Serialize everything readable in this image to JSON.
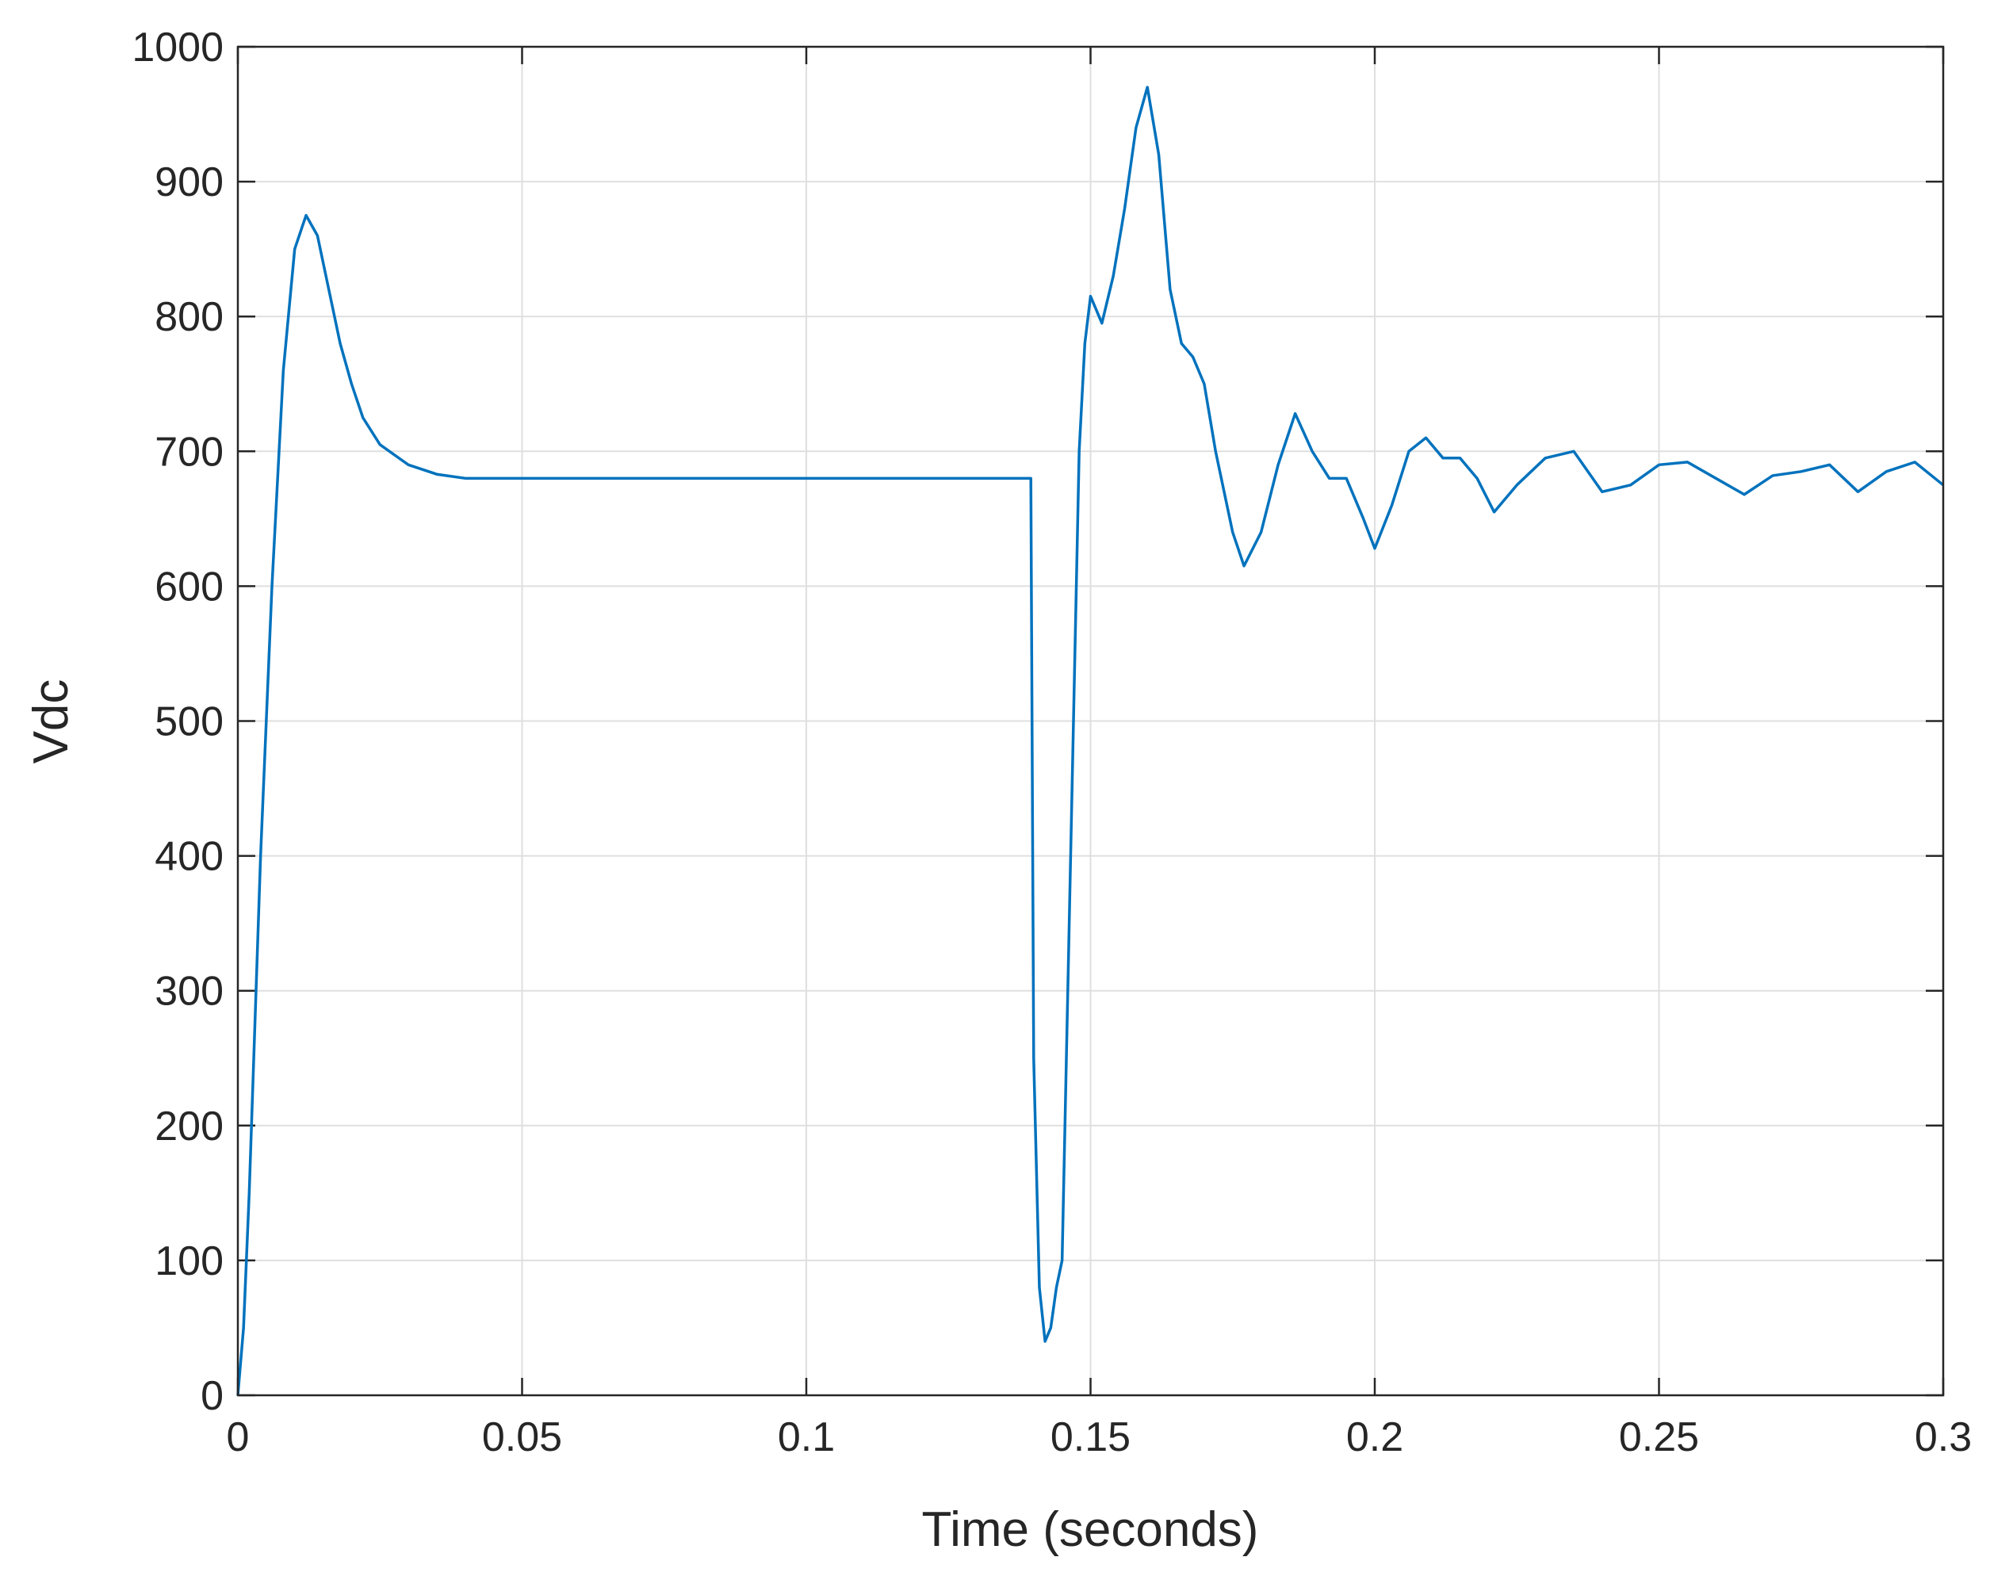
{
  "chart_data": {
    "type": "line",
    "x_label": "Time (seconds)",
    "y_label": "Vdc",
    "color": "#0072bd",
    "grid": true,
    "xlim": [
      0,
      0.3
    ],
    "ylim": [
      0,
      1000
    ],
    "xticks": [
      0,
      0.05,
      0.1,
      0.15,
      0.2,
      0.25,
      0.3
    ],
    "yticks": [
      0,
      100,
      200,
      300,
      400,
      500,
      600,
      700,
      800,
      900,
      1000
    ],
    "x": [
      0,
      0.001,
      0.002,
      0.004,
      0.006,
      0.008,
      0.01,
      0.012,
      0.014,
      0.016,
      0.018,
      0.02,
      0.022,
      0.025,
      0.03,
      0.035,
      0.04,
      0.06,
      0.08,
      0.1,
      0.12,
      0.1395,
      0.14,
      0.141,
      0.142,
      0.143,
      0.144,
      0.145,
      0.146,
      0.147,
      0.148,
      0.149,
      0.15,
      0.152,
      0.154,
      0.156,
      0.158,
      0.16,
      0.162,
      0.164,
      0.166,
      0.168,
      0.17,
      0.172,
      0.175,
      0.177,
      0.18,
      0.183,
      0.186,
      0.189,
      0.192,
      0.195,
      0.198,
      0.2,
      0.203,
      0.206,
      0.209,
      0.212,
      0.215,
      0.218,
      0.221,
      0.225,
      0.23,
      0.235,
      0.24,
      0.245,
      0.25,
      0.255,
      0.26,
      0.265,
      0.27,
      0.275,
      0.28,
      0.285,
      0.29,
      0.295,
      0.3
    ],
    "values": [
      0,
      50,
      150,
      400,
      600,
      760,
      850,
      875,
      860,
      820,
      780,
      750,
      725,
      705,
      690,
      683,
      680,
      680,
      680,
      680,
      680,
      680,
      250,
      80,
      40,
      50,
      80,
      100,
      300,
      500,
      700,
      780,
      815,
      795,
      830,
      880,
      940,
      970,
      920,
      820,
      780,
      770,
      750,
      700,
      640,
      615,
      640,
      690,
      728,
      700,
      680,
      680,
      650,
      628,
      660,
      700,
      710,
      695,
      695,
      680,
      655,
      675,
      695,
      700,
      670,
      675,
      690,
      692,
      680,
      668,
      682,
      685,
      690,
      670,
      685,
      692,
      675
    ]
  }
}
